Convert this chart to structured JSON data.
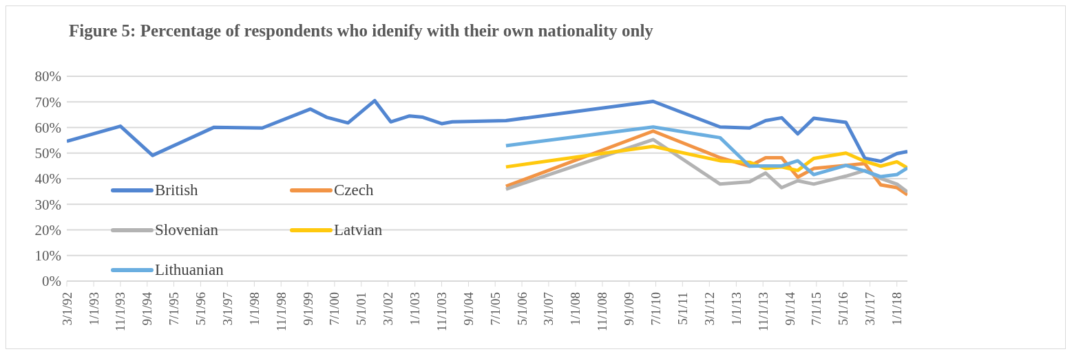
{
  "chart_data": {
    "type": "line",
    "title": "Figure 5: Percentage of respondents who idenify with their own nationality only",
    "xlim": [
      "1992-03",
      "2018-05"
    ],
    "xticks": [
      {
        "value": "1992-03",
        "label": "3/1/92"
      },
      {
        "value": "1993-01",
        "label": "1/1/93"
      },
      {
        "value": "1993-11",
        "label": "11/1/93"
      },
      {
        "value": "1994-09",
        "label": "9/1/94"
      },
      {
        "value": "1995-07",
        "label": "7/1/95"
      },
      {
        "value": "1996-05",
        "label": "5/1/96"
      },
      {
        "value": "1997-03",
        "label": "3/1/97"
      },
      {
        "value": "1998-01",
        "label": "1/1/98"
      },
      {
        "value": "1998-11",
        "label": "11/1/98"
      },
      {
        "value": "1999-09",
        "label": "9/1/99"
      },
      {
        "value": "2000-07",
        "label": "7/1/00"
      },
      {
        "value": "2001-05",
        "label": "5/1/01"
      },
      {
        "value": "2002-03",
        "label": "3/1/02"
      },
      {
        "value": "2003-01",
        "label": "1/1/03"
      },
      {
        "value": "2003-11",
        "label": "11/1/03"
      },
      {
        "value": "2004-09",
        "label": "9/1/04"
      },
      {
        "value": "2005-07",
        "label": "7/1/05"
      },
      {
        "value": "2006-05",
        "label": "5/1/06"
      },
      {
        "value": "2007-03",
        "label": "3/1/07"
      },
      {
        "value": "2008-01",
        "label": "1/1/08"
      },
      {
        "value": "2008-11",
        "label": "11/1/08"
      },
      {
        "value": "2009-09",
        "label": "9/1/09"
      },
      {
        "value": "2010-07",
        "label": "7/1/10"
      },
      {
        "value": "2011-05",
        "label": "5/1/11"
      },
      {
        "value": "2012-03",
        "label": "3/1/12"
      },
      {
        "value": "2013-01",
        "label": "1/1/13"
      },
      {
        "value": "2013-11",
        "label": "11/1/13"
      },
      {
        "value": "2014-09",
        "label": "9/1/14"
      },
      {
        "value": "2015-07",
        "label": "7/1/15"
      },
      {
        "value": "2016-05",
        "label": "5/1/16"
      },
      {
        "value": "2017-03",
        "label": "3/1/17"
      },
      {
        "value": "2018-01",
        "label": "1/1/18"
      }
    ],
    "ylim": [
      0,
      80
    ],
    "yticks": [
      {
        "value": 0,
        "label": "0%"
      },
      {
        "value": 10,
        "label": "10%"
      },
      {
        "value": 20,
        "label": "20%"
      },
      {
        "value": 30,
        "label": "30%"
      },
      {
        "value": 40,
        "label": "40%"
      },
      {
        "value": 50,
        "label": "50%"
      },
      {
        "value": 60,
        "label": "60%"
      },
      {
        "value": 70,
        "label": "70%"
      },
      {
        "value": 80,
        "label": "80%"
      }
    ],
    "grid": "y",
    "legend": "bottom left",
    "marker": "none",
    "line_style": "solid",
    "series": [
      {
        "name": "British",
        "color": "#5286d1",
        "x": [
          "1992-03",
          "1993-11",
          "1994-11",
          "1996-10",
          "1998-04",
          "1999-10",
          "2000-04",
          "2000-12",
          "2001-10",
          "2002-04",
          "2002-11",
          "2003-04",
          "2003-11",
          "2004-03",
          "2005-11",
          "2010-06",
          "2012-07",
          "2013-06",
          "2013-12",
          "2014-06",
          "2014-12",
          "2015-06",
          "2016-06",
          "2017-01",
          "2017-07",
          "2018-01",
          "2018-05"
        ],
        "values": [
          54.6,
          60.5,
          49.1,
          60.1,
          59.8,
          67.2,
          64,
          61.8,
          70.5,
          62.2,
          64.5,
          64,
          61.5,
          62.2,
          62.7,
          70.2,
          60.2,
          59.8,
          62.7,
          63.8,
          57.5,
          63.6,
          62,
          48,
          46.8,
          49.8,
          50.6
        ]
      },
      {
        "name": "Czech",
        "color": "#f29445",
        "x": [
          "2005-11",
          "2010-06",
          "2012-07",
          "2013-06",
          "2013-12",
          "2014-06",
          "2014-12",
          "2015-06",
          "2016-06",
          "2017-01",
          "2017-07",
          "2018-01",
          "2018-05"
        ],
        "values": [
          37,
          58.6,
          48.2,
          44.9,
          48.2,
          48.2,
          40.6,
          44,
          45.2,
          45.9,
          37.6,
          36.5,
          33.7
        ]
      },
      {
        "name": "Slovenian",
        "color": "#b3b3b3",
        "x": [
          "2005-11",
          "2010-06",
          "2012-07",
          "2013-06",
          "2013-12",
          "2014-06",
          "2014-12",
          "2015-06",
          "2016-06",
          "2017-01",
          "2017-07",
          "2018-01",
          "2018-05"
        ],
        "values": [
          35.9,
          55.3,
          37.9,
          38.8,
          42.2,
          36.5,
          39.2,
          37.9,
          41,
          43.2,
          40.1,
          37.9,
          34.8
        ]
      },
      {
        "name": "Latvian",
        "color": "#ffc90e",
        "x": [
          "2005-11",
          "2010-06",
          "2012-07",
          "2013-06",
          "2013-12",
          "2014-06",
          "2014-12",
          "2015-06",
          "2016-06",
          "2017-01",
          "2017-07",
          "2018-01",
          "2018-05"
        ],
        "values": [
          44.6,
          52.6,
          47,
          46.4,
          44,
          44.6,
          43.2,
          47.9,
          50,
          46.8,
          44.9,
          46.6,
          44.2
        ]
      },
      {
        "name": "Lithuanian",
        "color": "#6aaee0",
        "x": [
          "2005-11",
          "2010-06",
          "2012-07",
          "2013-06",
          "2013-12",
          "2014-06",
          "2014-12",
          "2015-06",
          "2016-06",
          "2017-01",
          "2017-07",
          "2018-01",
          "2018-05"
        ],
        "values": [
          52.9,
          60.2,
          56,
          44.9,
          45,
          45,
          47,
          41.6,
          45.2,
          43,
          40.8,
          41.6,
          44.2
        ]
      }
    ]
  }
}
